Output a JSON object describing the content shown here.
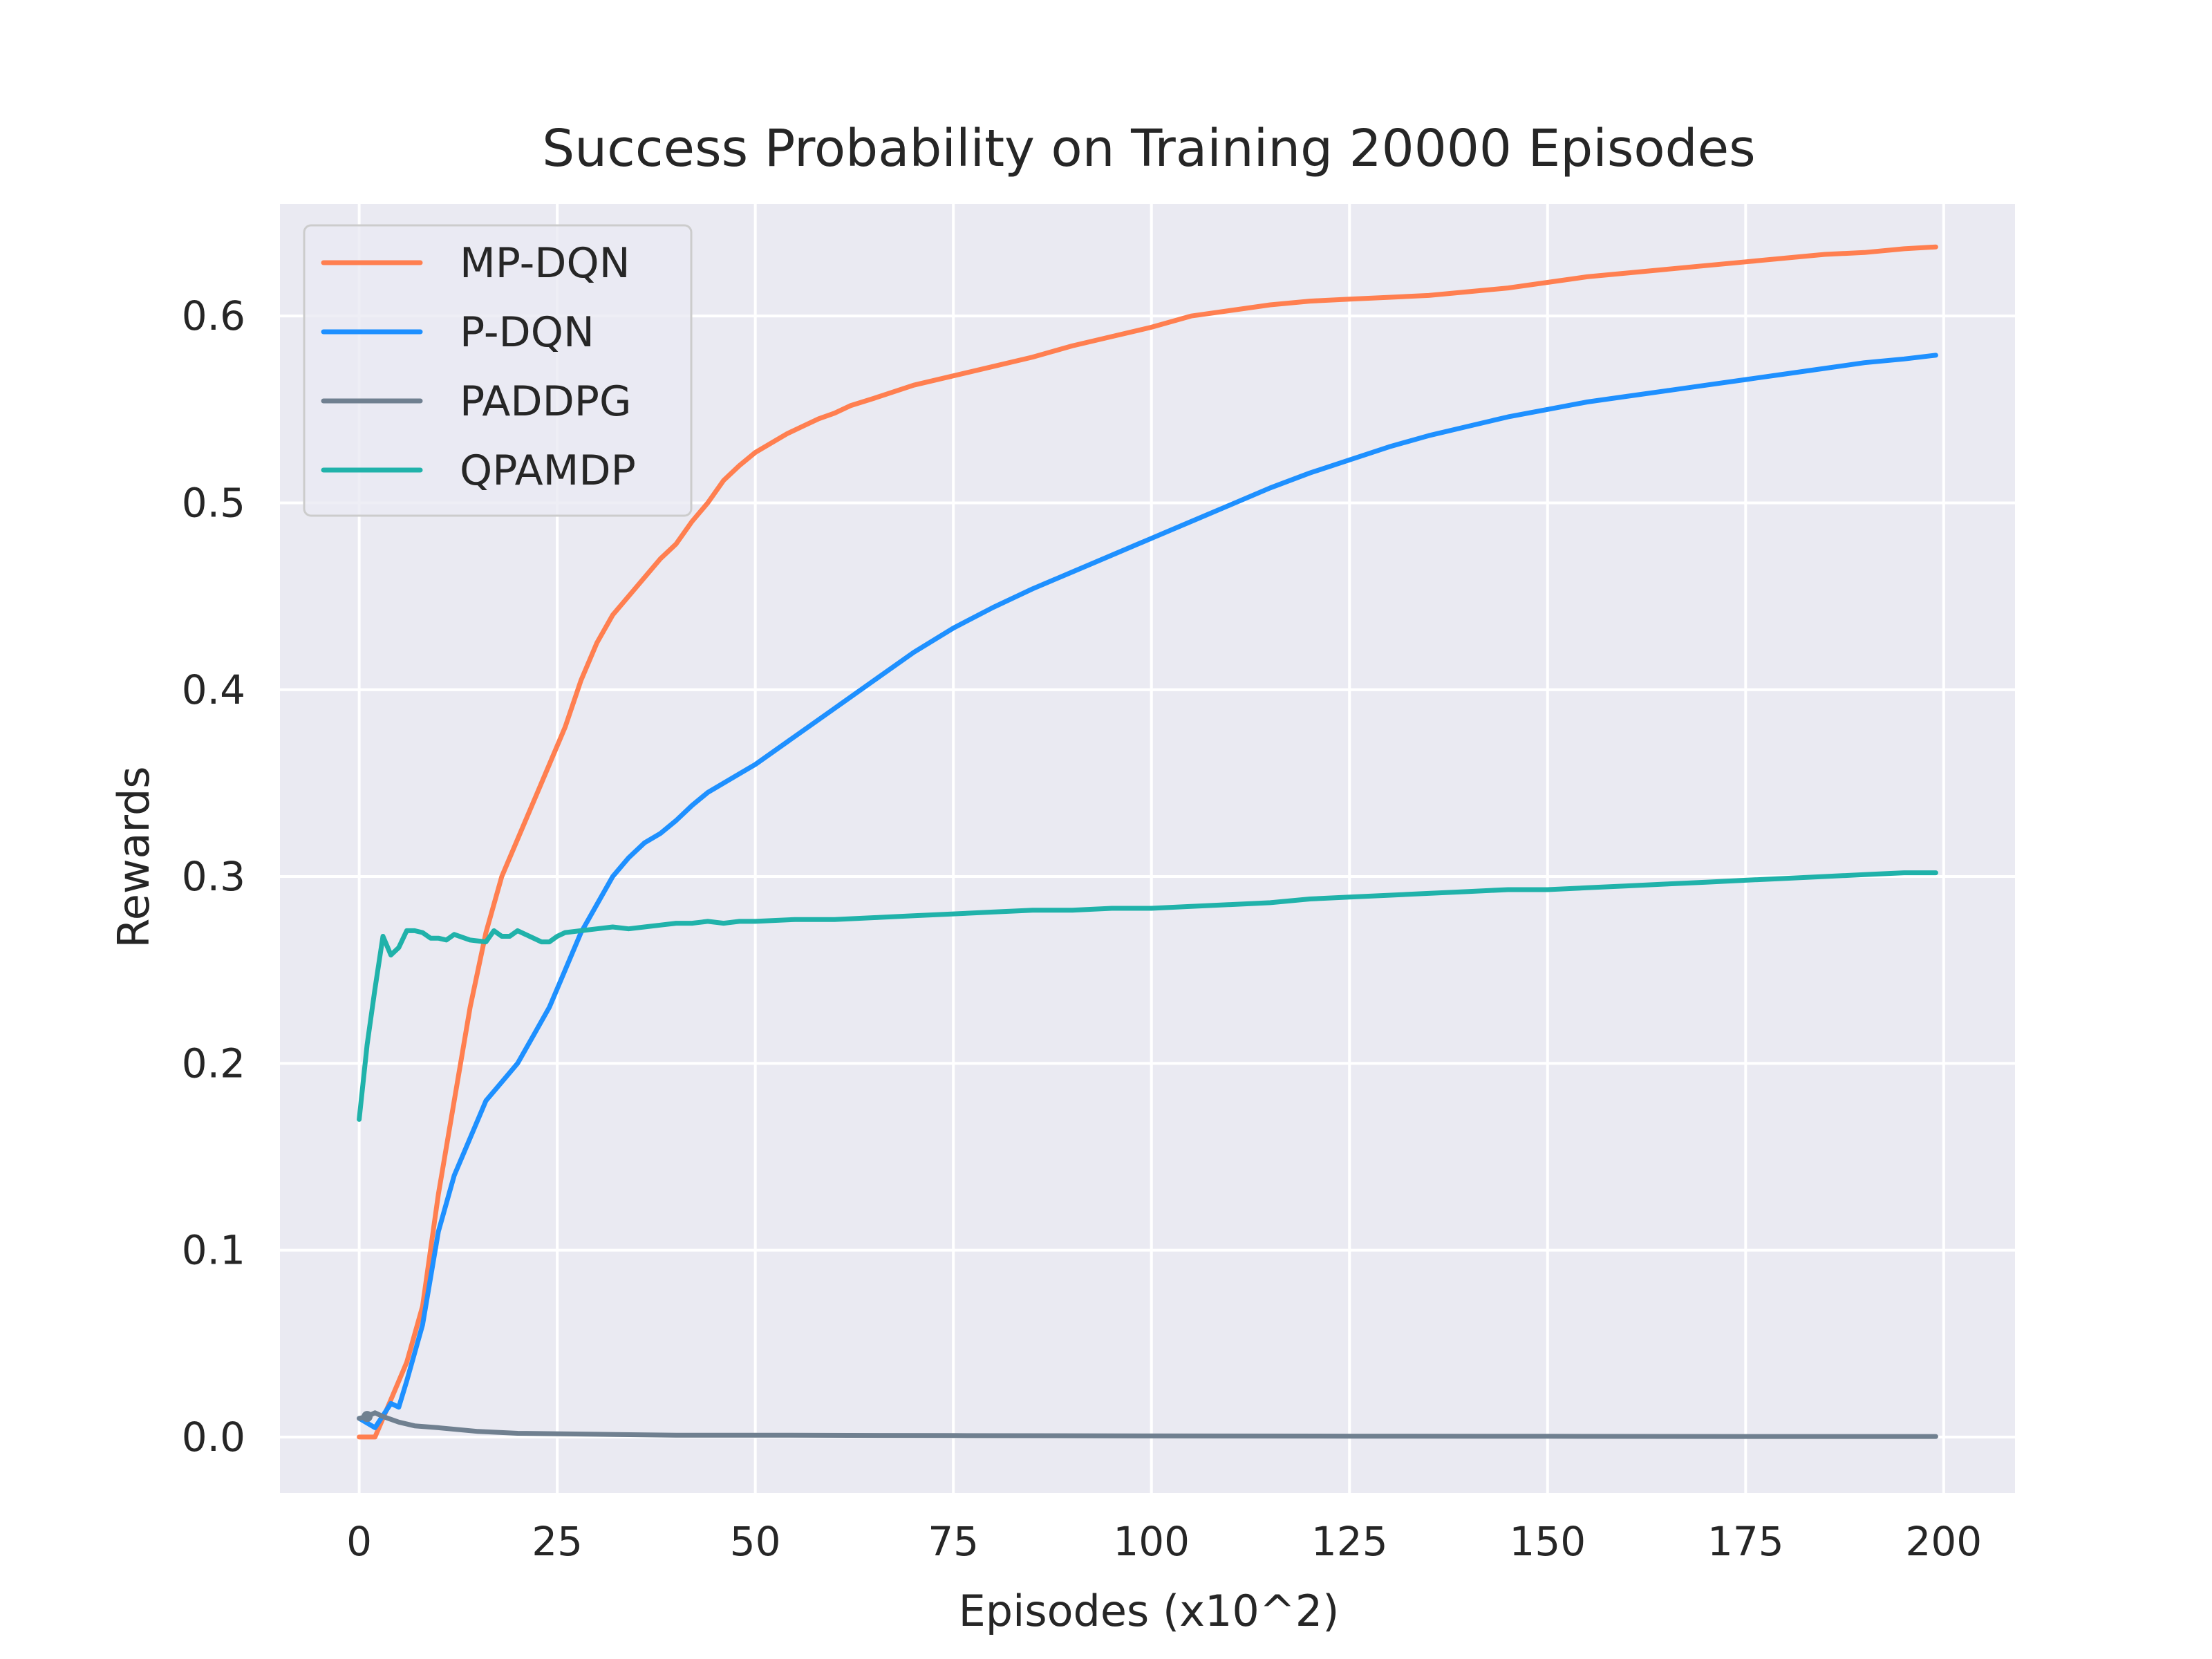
{
  "chart_data": {
    "type": "line",
    "title": "Success Probability on Training 20000 Episodes",
    "xlabel": "Episodes (x10^2)",
    "ylabel": "Rewards",
    "xlim": [
      -10,
      209
    ],
    "ylim": [
      -0.03,
      0.66
    ],
    "xticks": [
      0,
      25,
      50,
      75,
      100,
      125,
      150,
      175,
      200
    ],
    "yticks": [
      0.0,
      0.1,
      0.2,
      0.3,
      0.4,
      0.5,
      0.6
    ],
    "ytick_labels": [
      "0.0",
      "0.1",
      "0.2",
      "0.3",
      "0.4",
      "0.5",
      "0.6"
    ],
    "grid": true,
    "legend_position": "top-left",
    "background": "#eaeaf2",
    "series": [
      {
        "name": "MP-DQN",
        "color": "#ff7f50",
        "x": [
          0,
          2,
          4,
          6,
          8,
          10,
          12,
          14,
          16,
          18,
          20,
          22,
          24,
          26,
          28,
          30,
          32,
          34,
          36,
          38,
          40,
          42,
          44,
          46,
          48,
          50,
          52,
          54,
          56,
          58,
          60,
          62,
          65,
          70,
          75,
          80,
          85,
          90,
          95,
          100,
          105,
          110,
          115,
          120,
          125,
          130,
          135,
          140,
          145,
          150,
          155,
          160,
          165,
          170,
          175,
          180,
          185,
          190,
          195,
          199
        ],
        "y": [
          0.0,
          0.0,
          0.02,
          0.04,
          0.07,
          0.13,
          0.18,
          0.23,
          0.27,
          0.3,
          0.32,
          0.34,
          0.36,
          0.38,
          0.405,
          0.425,
          0.44,
          0.45,
          0.46,
          0.47,
          0.478,
          0.49,
          0.5,
          0.512,
          0.52,
          0.527,
          0.532,
          0.537,
          0.541,
          0.545,
          0.548,
          0.552,
          0.556,
          0.563,
          0.568,
          0.573,
          0.578,
          0.584,
          0.589,
          0.594,
          0.6,
          0.603,
          0.606,
          0.608,
          0.609,
          0.61,
          0.611,
          0.613,
          0.615,
          0.618,
          0.621,
          0.623,
          0.625,
          0.627,
          0.629,
          0.631,
          0.633,
          0.634,
          0.636,
          0.637
        ]
      },
      {
        "name": "P-DQN",
        "color": "#1e90ff",
        "x": [
          0,
          2,
          4,
          5,
          6,
          8,
          10,
          12,
          14,
          16,
          18,
          20,
          22,
          24,
          26,
          28,
          30,
          32,
          34,
          36,
          38,
          40,
          42,
          44,
          46,
          48,
          50,
          55,
          60,
          65,
          70,
          75,
          80,
          85,
          90,
          95,
          100,
          105,
          110,
          115,
          120,
          125,
          130,
          135,
          140,
          145,
          150,
          155,
          160,
          165,
          170,
          175,
          180,
          185,
          190,
          195,
          199
        ],
        "y": [
          0.01,
          0.005,
          0.018,
          0.016,
          0.03,
          0.06,
          0.11,
          0.14,
          0.16,
          0.18,
          0.19,
          0.2,
          0.215,
          0.23,
          0.25,
          0.27,
          0.285,
          0.3,
          0.31,
          0.318,
          0.323,
          0.33,
          0.338,
          0.345,
          0.35,
          0.355,
          0.36,
          0.375,
          0.39,
          0.405,
          0.42,
          0.433,
          0.444,
          0.454,
          0.463,
          0.472,
          0.481,
          0.49,
          0.499,
          0.508,
          0.516,
          0.523,
          0.53,
          0.536,
          0.541,
          0.546,
          0.55,
          0.554,
          0.557,
          0.56,
          0.563,
          0.566,
          0.569,
          0.572,
          0.575,
          0.577,
          0.579
        ]
      },
      {
        "name": "PADDPG",
        "color": "#708090",
        "x": [
          0,
          1,
          2,
          3,
          5,
          7,
          10,
          15,
          20,
          30,
          40,
          50,
          75,
          100,
          125,
          150,
          175,
          199
        ],
        "y": [
          0.01,
          0.011,
          0.013,
          0.011,
          0.008,
          0.006,
          0.005,
          0.003,
          0.002,
          0.0015,
          0.001,
          0.001,
          0.0008,
          0.0006,
          0.0005,
          0.0004,
          0.0003,
          0.0003
        ],
        "marker_x": 1,
        "marker_y": 0.011
      },
      {
        "name": "QPAMDP",
        "color": "#20b2aa",
        "x": [
          0,
          1,
          2,
          3,
          4,
          5,
          6,
          7,
          8,
          9,
          10,
          11,
          12,
          14,
          16,
          17,
          18,
          19,
          20,
          21,
          22,
          23,
          24,
          25,
          26,
          28,
          30,
          32,
          34,
          36,
          38,
          40,
          42,
          44,
          46,
          48,
          50,
          55,
          60,
          65,
          70,
          75,
          80,
          85,
          90,
          95,
          100,
          105,
          110,
          115,
          120,
          125,
          130,
          135,
          140,
          145,
          150,
          155,
          160,
          165,
          170,
          175,
          180,
          185,
          190,
          195,
          199
        ],
        "y": [
          0.17,
          0.21,
          0.24,
          0.268,
          0.258,
          0.262,
          0.271,
          0.271,
          0.27,
          0.267,
          0.267,
          0.266,
          0.269,
          0.266,
          0.265,
          0.271,
          0.268,
          0.268,
          0.271,
          0.269,
          0.267,
          0.265,
          0.265,
          0.268,
          0.27,
          0.271,
          0.272,
          0.273,
          0.272,
          0.273,
          0.274,
          0.275,
          0.275,
          0.276,
          0.275,
          0.276,
          0.276,
          0.277,
          0.277,
          0.278,
          0.279,
          0.28,
          0.281,
          0.282,
          0.282,
          0.283,
          0.283,
          0.284,
          0.285,
          0.286,
          0.288,
          0.289,
          0.29,
          0.291,
          0.292,
          0.293,
          0.293,
          0.294,
          0.295,
          0.296,
          0.297,
          0.298,
          0.299,
          0.3,
          0.301,
          0.302,
          0.302
        ]
      }
    ]
  }
}
